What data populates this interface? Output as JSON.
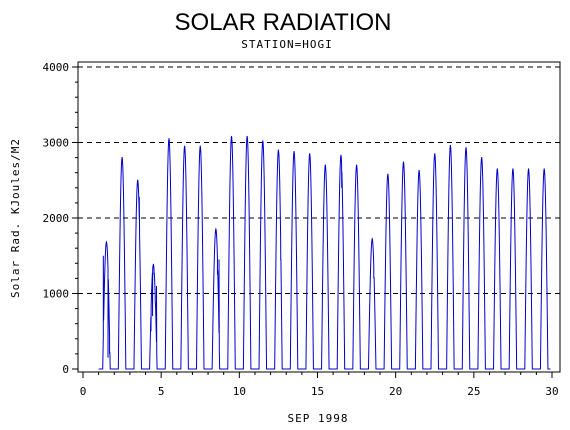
{
  "chart_data": {
    "type": "line",
    "title": "SOLAR RADIATION",
    "subtitle": "STATION=HOGI",
    "xlabel": "SEP 1998",
    "ylabel": "Solar Rad. KJoules/M2",
    "xlim": [
      0,
      30
    ],
    "ylim": [
      0,
      4000
    ],
    "x_ticks": [
      0,
      5,
      10,
      15,
      20,
      25,
      30
    ],
    "y_ticks": [
      0,
      1000,
      2000,
      3000,
      4000
    ],
    "grid": "horizontal-dashed",
    "colors": {
      "series": "#0000cc",
      "axes": "#000000",
      "grid": "#000000"
    },
    "series": [
      {
        "daily_peaks": [
          {
            "day": 1,
            "peak": 1680,
            "extra": [
              [
                1.3,
                1500
              ],
              [
                1.6,
                150
              ],
              [
                1.7,
                200
              ]
            ]
          },
          {
            "day": 2,
            "peak": 2800
          },
          {
            "day": 3,
            "peak": 2500,
            "extra": [
              [
                3.6,
                2280
              ]
            ]
          },
          {
            "day": 4,
            "peak": 1380,
            "extra": [
              [
                4.35,
                500
              ],
              [
                4.45,
                700
              ],
              [
                4.55,
                1250
              ],
              [
                4.62,
                900
              ],
              [
                4.7,
                1100
              ]
            ]
          },
          {
            "day": 5,
            "peak": 3050
          },
          {
            "day": 6,
            "peak": 2950
          },
          {
            "day": 7,
            "peak": 2950
          },
          {
            "day": 8,
            "peak": 1850,
            "extra": [
              [
                8.6,
                1250
              ],
              [
                8.7,
                1450
              ]
            ]
          },
          {
            "day": 9,
            "peak": 3080
          },
          {
            "day": 10,
            "peak": 3080
          },
          {
            "day": 11,
            "peak": 3020
          },
          {
            "day": 12,
            "peak": 2900,
            "extra": [
              [
                12.65,
                1450
              ]
            ]
          },
          {
            "day": 13,
            "peak": 2880
          },
          {
            "day": 14,
            "peak": 2850
          },
          {
            "day": 15,
            "peak": 2700
          },
          {
            "day": 16,
            "peak": 2830,
            "extra": [
              [
                16.55,
                2400
              ]
            ]
          },
          {
            "day": 17,
            "peak": 2700
          },
          {
            "day": 18,
            "peak": 1720,
            "extra": [
              [
                18.6,
                1200
              ]
            ]
          },
          {
            "day": 19,
            "peak": 2580
          },
          {
            "day": 20,
            "peak": 2740
          },
          {
            "day": 21,
            "peak": 2630
          },
          {
            "day": 22,
            "peak": 2850
          },
          {
            "day": 23,
            "peak": 2960
          },
          {
            "day": 24,
            "peak": 2930
          },
          {
            "day": 25,
            "peak": 2800
          },
          {
            "day": 26,
            "peak": 2650
          },
          {
            "day": 27,
            "peak": 2650
          },
          {
            "day": 28,
            "peak": 2650
          },
          {
            "day": 29,
            "peak": 2650
          }
        ]
      }
    ]
  }
}
